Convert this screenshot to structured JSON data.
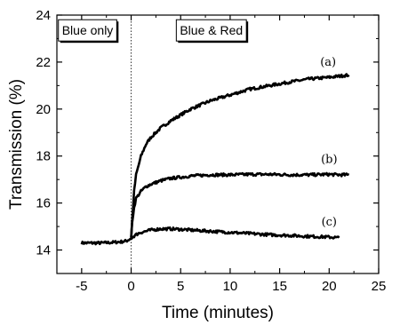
{
  "chart_data": {
    "type": "line",
    "xlabel": "Time (minutes)",
    "ylabel": "Transmission (%)",
    "xlim": [
      -7.5,
      25
    ],
    "ylim": [
      13,
      24
    ],
    "xticks": [
      -5,
      0,
      5,
      10,
      15,
      20,
      25
    ],
    "xtick_labels": [
      "-5",
      "0",
      "5",
      "10",
      "15",
      "20",
      "25"
    ],
    "yticks": [
      14,
      16,
      18,
      20,
      22,
      24
    ],
    "ytick_labels": [
      "14",
      "16",
      "18",
      "20",
      "22",
      "24"
    ],
    "grid": false,
    "vline_x": 0,
    "annotations": [
      {
        "text": "Blue only",
        "x": -4.4,
        "y": 23.35
      },
      {
        "text": "Blue & Red",
        "x": 8.1,
        "y": 23.35
      }
    ],
    "series": [
      {
        "name": "(a)",
        "label_pos": [
          19.9,
          21.85
        ],
        "x": [
          -5,
          -4,
          -3,
          -2,
          -1,
          -0.5,
          0,
          0.1,
          0.3,
          0.5,
          1,
          1.5,
          2,
          3,
          4,
          5,
          6,
          8,
          10,
          12,
          14,
          16,
          18,
          20,
          21,
          22
        ],
        "y": [
          14.3,
          14.3,
          14.3,
          14.32,
          14.35,
          14.38,
          14.5,
          15.2,
          16.5,
          17.2,
          18.0,
          18.5,
          18.8,
          19.2,
          19.5,
          19.75,
          20.0,
          20.35,
          20.6,
          20.85,
          21.0,
          21.15,
          21.28,
          21.35,
          21.4,
          21.45
        ]
      },
      {
        "name": "(b)",
        "label_pos": [
          20.0,
          17.7
        ],
        "x": [
          0,
          0.1,
          0.3,
          0.5,
          1,
          1.5,
          2,
          3,
          4,
          5,
          6,
          8,
          10,
          12,
          14,
          16,
          18,
          20,
          21,
          22
        ],
        "y": [
          14.5,
          15.2,
          15.8,
          16.2,
          16.5,
          16.7,
          16.8,
          16.95,
          17.05,
          17.1,
          17.15,
          17.2,
          17.2,
          17.22,
          17.22,
          17.2,
          17.2,
          17.22,
          17.2,
          17.2
        ]
      },
      {
        "name": "(c)",
        "label_pos": [
          20.0,
          15.05
        ],
        "x": [
          0,
          0.3,
          0.7,
          1,
          2,
          3,
          4,
          5,
          6,
          8,
          10,
          12,
          14,
          16,
          18,
          20,
          21
        ],
        "y": [
          14.5,
          14.6,
          14.7,
          14.75,
          14.85,
          14.9,
          14.9,
          14.88,
          14.85,
          14.8,
          14.75,
          14.7,
          14.65,
          14.62,
          14.58,
          14.55,
          14.52
        ]
      }
    ]
  }
}
